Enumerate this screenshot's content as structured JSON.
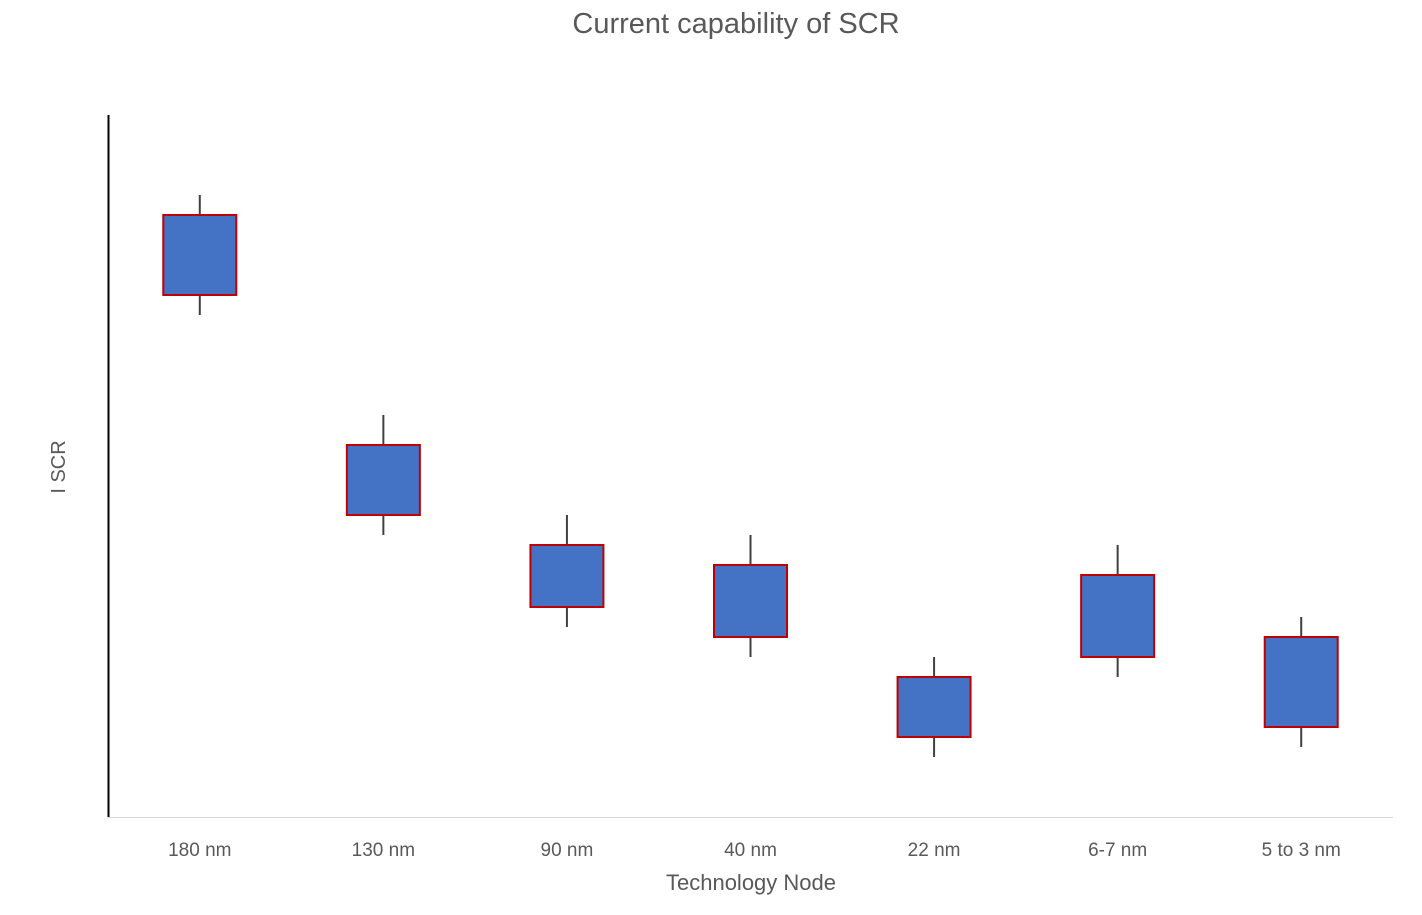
{
  "chart_data": {
    "type": "candlestick",
    "title": "Current capability of SCR",
    "xlabel": "Technology Node",
    "ylabel": "I SCR",
    "categories": [
      "180 nm",
      "130 nm",
      "90 nm",
      "40 nm",
      "22 nm",
      "6-7 nm",
      "5 to 3 nm"
    ],
    "series": [
      {
        "high": [
          31.1,
          20.1,
          15.1,
          14.1,
          8.0,
          13.6,
          10.0
        ],
        "top": [
          30.1,
          18.6,
          13.6,
          12.6,
          7.0,
          12.1,
          9.0
        ],
        "bottom": [
          26.1,
          15.1,
          10.5,
          9.0,
          4.0,
          8.0,
          4.5
        ],
        "low": [
          25.1,
          14.1,
          9.5,
          8.0,
          3.0,
          7.0,
          3.5
        ]
      }
    ],
    "ylim": [
      0,
      35.1
    ],
    "y_tick_labels": false,
    "grid": false,
    "legend": "none",
    "colors": {
      "box_fill": "#4472C4",
      "box_border": "#C00000",
      "whisker": "#404040",
      "axis": "#000000"
    }
  }
}
